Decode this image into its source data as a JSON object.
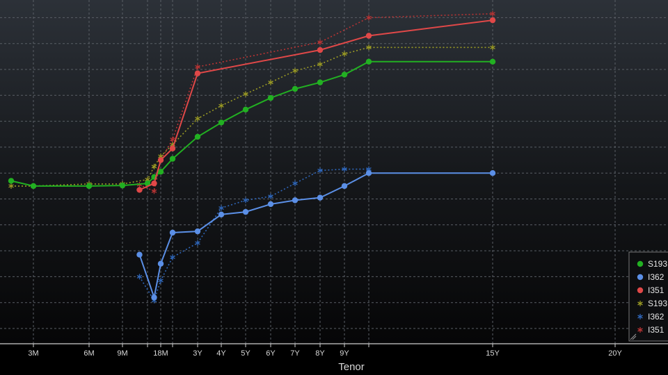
{
  "chart_data": {
    "type": "line",
    "xlabel": "Tenor",
    "ylabel": "",
    "grid": true,
    "legend_position": "bottom-right",
    "x_ticks": [
      {
        "label": "3M",
        "t": 0.25
      },
      {
        "label": "6M",
        "t": 0.5
      },
      {
        "label": "9M",
        "t": 0.75
      },
      {
        "label": "18M",
        "t": 1.5
      },
      {
        "label": "3Y",
        "t": 3
      },
      {
        "label": "4Y",
        "t": 4
      },
      {
        "label": "5Y",
        "t": 5
      },
      {
        "label": "6Y",
        "t": 6
      },
      {
        "label": "7Y",
        "t": 7
      },
      {
        "label": "8Y",
        "t": 8
      },
      {
        "label": "9Y",
        "t": 9
      },
      {
        "label": "15Y",
        "t": 15
      },
      {
        "label": "20Y",
        "t": 20
      }
    ],
    "x_tick_positions": [
      0.25,
      0.5,
      0.75,
      1,
      1.5,
      2,
      3,
      4,
      5,
      6,
      7,
      8,
      9,
      10,
      15,
      20
    ],
    "y_grid_levels": [
      0,
      1,
      2,
      3,
      4,
      5,
      6,
      7,
      8,
      9,
      10,
      11,
      12
    ],
    "ylim": [
      0,
      12.5
    ],
    "series": [
      {
        "name": "S193",
        "color": "#22b022",
        "marker": "circle",
        "line_style": "solid",
        "points": [
          [
            0.05,
            5.7
          ],
          [
            0.25,
            5.5
          ],
          [
            0.5,
            5.5
          ],
          [
            0.75,
            5.52
          ],
          [
            1.0,
            5.6
          ],
          [
            1.25,
            5.85
          ],
          [
            1.5,
            6.05
          ],
          [
            2.0,
            6.55
          ],
          [
            3.0,
            7.4
          ],
          [
            4.0,
            7.95
          ],
          [
            5.0,
            8.45
          ],
          [
            6.0,
            8.9
          ],
          [
            7.0,
            9.25
          ],
          [
            8.0,
            9.5
          ],
          [
            9.0,
            9.8
          ],
          [
            10.0,
            10.3
          ],
          [
            15.0,
            10.3
          ]
        ]
      },
      {
        "name": "I362",
        "color": "#5b8fe6",
        "marker": "circle",
        "line_style": "solid",
        "points": [
          [
            0.92,
            2.85
          ],
          [
            1.25,
            1.2
          ],
          [
            1.5,
            2.5
          ],
          [
            2.0,
            3.7
          ],
          [
            3.0,
            3.75
          ],
          [
            4.0,
            4.4
          ],
          [
            5.0,
            4.5
          ],
          [
            6.0,
            4.8
          ],
          [
            7.0,
            4.95
          ],
          [
            8.0,
            5.05
          ],
          [
            9.0,
            5.5
          ],
          [
            10.0,
            6.0
          ],
          [
            15.0,
            6.0
          ]
        ]
      },
      {
        "name": "I351",
        "color": "#e04848",
        "marker": "circle",
        "line_style": "solid",
        "points": [
          [
            0.92,
            5.35
          ],
          [
            1.25,
            5.6
          ],
          [
            1.5,
            6.5
          ],
          [
            2.0,
            6.95
          ],
          [
            3.0,
            9.85
          ],
          [
            8.0,
            10.75
          ],
          [
            10.0,
            11.3
          ],
          [
            15.0,
            11.9
          ]
        ]
      },
      {
        "name": "S193",
        "color": "#9a9a24",
        "marker": "asterisk",
        "line_style": "dotted",
        "points": [
          [
            0.05,
            5.5
          ],
          [
            0.25,
            5.5
          ],
          [
            0.5,
            5.58
          ],
          [
            0.75,
            5.58
          ],
          [
            1.0,
            5.75
          ],
          [
            1.25,
            6.25
          ],
          [
            1.5,
            6.65
          ],
          [
            2.0,
            7.1
          ],
          [
            3.0,
            8.1
          ],
          [
            4.0,
            8.6
          ],
          [
            5.0,
            9.05
          ],
          [
            6.0,
            9.5
          ],
          [
            7.0,
            9.95
          ],
          [
            8.0,
            10.2
          ],
          [
            9.0,
            10.6
          ],
          [
            10.0,
            10.85
          ],
          [
            15.0,
            10.85
          ]
        ]
      },
      {
        "name": "I362",
        "color": "#2f66b8",
        "marker": "asterisk",
        "line_style": "dotted",
        "points": [
          [
            0.92,
            2.0
          ],
          [
            1.25,
            1.08
          ],
          [
            1.5,
            1.85
          ],
          [
            2.0,
            2.75
          ],
          [
            3.0,
            3.3
          ],
          [
            4.0,
            4.65
          ],
          [
            5.0,
            4.95
          ],
          [
            6.0,
            5.1
          ],
          [
            7.0,
            5.6
          ],
          [
            8.0,
            6.1
          ],
          [
            9.0,
            6.15
          ],
          [
            10.0,
            6.15
          ]
        ]
      },
      {
        "name": "I351",
        "color": "#b83434",
        "marker": "asterisk",
        "line_style": "dotted",
        "points": [
          [
            0.92,
            5.55
          ],
          [
            1.25,
            5.3
          ],
          [
            1.5,
            6.5
          ],
          [
            2.0,
            7.3
          ],
          [
            3.0,
            10.1
          ],
          [
            8.0,
            11.05
          ],
          [
            10.0,
            12.0
          ],
          [
            15.0,
            12.15
          ]
        ]
      }
    ]
  }
}
